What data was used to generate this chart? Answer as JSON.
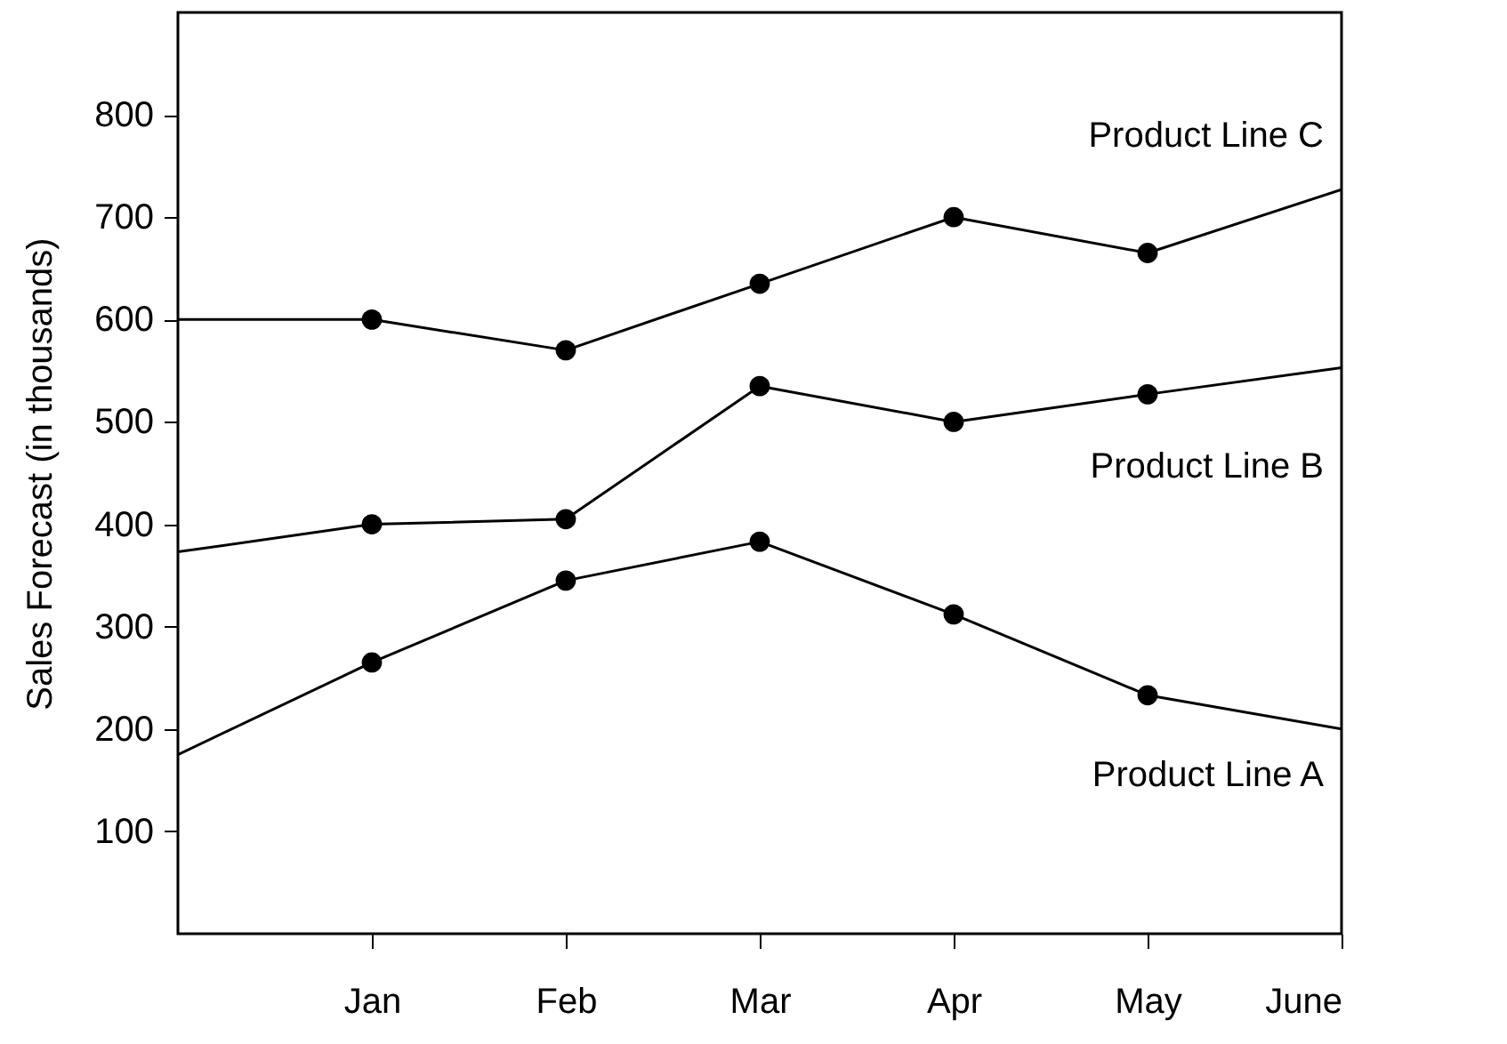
{
  "chart_data": {
    "type": "line",
    "ylabel": "Sales Forecast (in thousands)",
    "categories": [
      null,
      "Jan",
      "Feb",
      "Mar",
      "Apr",
      "May",
      "June"
    ],
    "ylim": [
      0,
      900
    ],
    "yticks": [
      100,
      200,
      300,
      400,
      500,
      600,
      700,
      800
    ],
    "marker": "circle",
    "line_style": "solid",
    "grid": false,
    "series": [
      {
        "name": "Product Line C",
        "color": "#000000",
        "values": [
          600,
          600,
          570,
          635,
          700,
          665,
          727
        ]
      },
      {
        "name": "Product Line B",
        "color": "#000000",
        "values": [
          373,
          400,
          405,
          535,
          500,
          527,
          553
        ]
      },
      {
        "name": "Product Line A",
        "color": "#000000",
        "values": [
          175,
          265,
          345,
          383,
          312,
          233,
          200
        ]
      }
    ]
  }
}
